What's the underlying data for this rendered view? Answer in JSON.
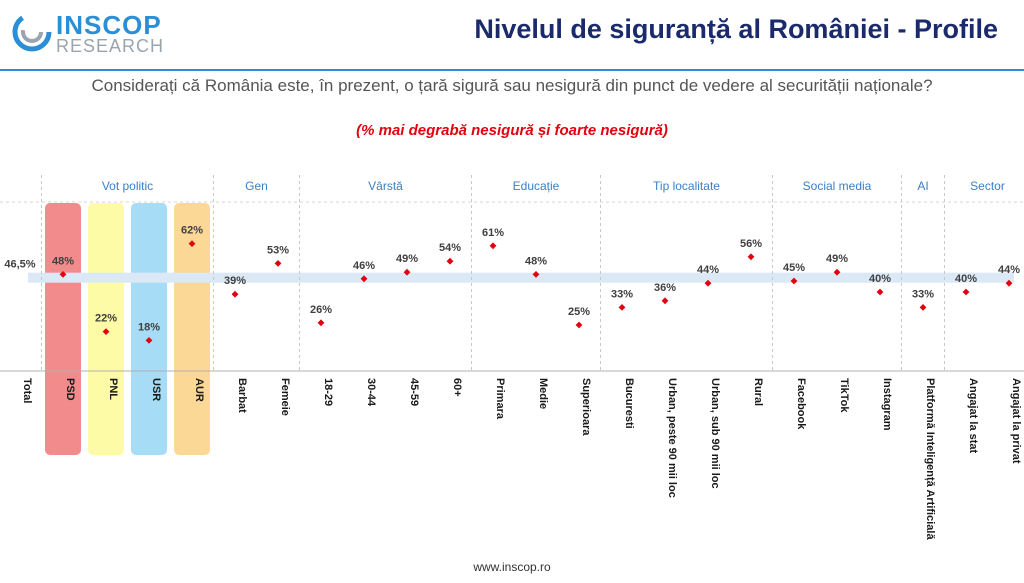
{
  "header": {
    "logo_top": "INSCOP",
    "logo_bottom": "RESEARCH",
    "title": "Nivelul de siguranță al României - Profile"
  },
  "question": "Considerați că România este, în prezent, o țară sigură sau nesigură din punct de vedere al securității naționale?",
  "subtitle": "(% mai degrabă nesigură și foarte nesigură)",
  "footer": "www.inscop.ro",
  "colors": {
    "marker": "#e3000f",
    "baseline_band": "#dbe8f6",
    "group_label": "#3b7fc4",
    "title": "#1a2a6c",
    "rule": "#2a8fd6"
  },
  "chart_data": {
    "type": "scatter",
    "title": "Nivelul de siguranță al României - Profile",
    "ylabel": "% mai degrabă nesigură și foarte nesigură",
    "ylim": [
      0,
      100
    ],
    "baseline": {
      "label": "Total",
      "value": 46.5
    },
    "groups": [
      {
        "name": "",
        "categories": [
          "Total"
        ]
      },
      {
        "name": "Vot politic",
        "categories": [
          "PSD",
          "PNL",
          "USR",
          "AUR"
        ]
      },
      {
        "name": "Gen",
        "categories": [
          "Barbat",
          "Femeie"
        ]
      },
      {
        "name": "Vârstă",
        "categories": [
          "18-29",
          "30-44",
          "45-59",
          "60+"
        ]
      },
      {
        "name": "Educație",
        "categories": [
          "Primara",
          "Medie",
          "Superioara"
        ]
      },
      {
        "name": "Tip localitate",
        "categories": [
          "Bucuresti",
          "Urban, peste 90 mii loc",
          "Urban, sub 90 mii loc",
          "Rural"
        ]
      },
      {
        "name": "Social media",
        "categories": [
          "Facebook",
          "TikTok",
          "Instagram"
        ]
      },
      {
        "name": "AI",
        "categories": [
          "Platformă Inteligență Artificială"
        ]
      },
      {
        "name": "Sector",
        "categories": [
          "Angajat la stat",
          "Angajat la privat"
        ]
      }
    ],
    "points": [
      {
        "category": "Total",
        "value": 46.5,
        "label": "46,5%"
      },
      {
        "category": "PSD",
        "value": 48,
        "label": "48%",
        "highlight": "#f28b8b"
      },
      {
        "category": "PNL",
        "value": 22,
        "label": "22%",
        "highlight": "#fdfba6"
      },
      {
        "category": "USR",
        "value": 18,
        "label": "18%",
        "highlight": "#a6dcf5"
      },
      {
        "category": "AUR",
        "value": 62,
        "label": "62%",
        "highlight": "#fbd896"
      },
      {
        "category": "Barbat",
        "value": 39,
        "label": "39%"
      },
      {
        "category": "Femeie",
        "value": 53,
        "label": "53%"
      },
      {
        "category": "18-29",
        "value": 26,
        "label": "26%"
      },
      {
        "category": "30-44",
        "value": 46,
        "label": "46%"
      },
      {
        "category": "45-59",
        "value": 49,
        "label": "49%"
      },
      {
        "category": "60+",
        "value": 54,
        "label": "54%"
      },
      {
        "category": "Primara",
        "value": 61,
        "label": "61%"
      },
      {
        "category": "Medie",
        "value": 48,
        "label": "48%"
      },
      {
        "category": "Superioara",
        "value": 25,
        "label": "25%"
      },
      {
        "category": "Bucuresti",
        "value": 33,
        "label": "33%"
      },
      {
        "category": "Urban, peste 90 mii loc",
        "value": 36,
        "label": "36%"
      },
      {
        "category": "Urban, sub 90 mii loc",
        "value": 44,
        "label": "44%"
      },
      {
        "category": "Rural",
        "value": 56,
        "label": "56%"
      },
      {
        "category": "Facebook",
        "value": 45,
        "label": "45%"
      },
      {
        "category": "TikTok",
        "value": 49,
        "label": "49%"
      },
      {
        "category": "Instagram",
        "value": 40,
        "label": "40%"
      },
      {
        "category": "Platformă Inteligență Artificială",
        "value": 33,
        "label": "33%"
      },
      {
        "category": "Angajat la stat",
        "value": 40,
        "label": "40%"
      },
      {
        "category": "Angajat la privat",
        "value": 44,
        "label": "44%"
      }
    ]
  }
}
